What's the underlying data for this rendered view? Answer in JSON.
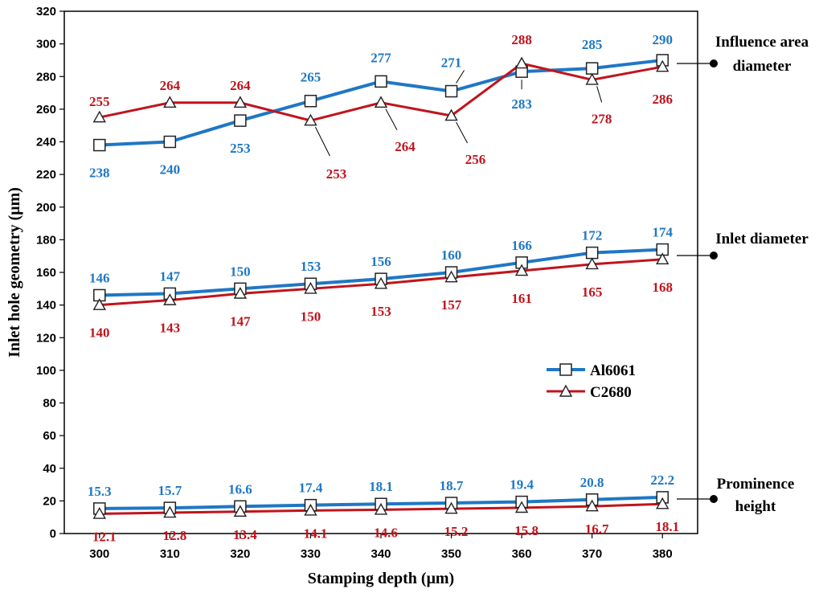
{
  "chart_data": {
    "type": "line",
    "xlabel": "Stamping depth (μm)",
    "ylabel": "Inlet hole geometry (μm)",
    "x": [
      300,
      310,
      320,
      330,
      340,
      350,
      360,
      370,
      380
    ],
    "x_tick_labels": [
      "300",
      "310",
      "320",
      "330",
      "340",
      "350",
      "360",
      "370",
      "380"
    ],
    "xlim": [
      295,
      385
    ],
    "ylim": [
      0,
      320
    ],
    "y_ticks": [
      0,
      20,
      40,
      60,
      80,
      100,
      120,
      140,
      160,
      180,
      200,
      220,
      240,
      260,
      280,
      300,
      320
    ],
    "y_tick_labels": [
      "0",
      "20",
      "40",
      "60",
      "80",
      "100",
      "120",
      "140",
      "160",
      "180",
      "200",
      "220",
      "240",
      "260",
      "280",
      "300",
      "320"
    ],
    "grid": false,
    "legend": {
      "position": "center-right",
      "entries": [
        {
          "label": "Al6061",
          "color": "#1f77c4",
          "marker": "square"
        },
        {
          "label": "C2680",
          "color": "#c0141c",
          "marker": "triangle"
        }
      ]
    },
    "groups": [
      {
        "name": "Influence area diameter",
        "label_lines": [
          "Influence area",
          "diameter"
        ],
        "series": [
          {
            "name": "Al6061",
            "color": "#1f77c4",
            "marker": "square",
            "values": [
              238,
              240,
              253,
              265,
              277,
              271,
              283,
              285,
              290
            ],
            "labels": [
              "238",
              "240",
              "253",
              "265",
              "277",
              "271",
              "283",
              "285",
              "290"
            ]
          },
          {
            "name": "C2680",
            "color": "#c0141c",
            "marker": "triangle",
            "values": [
              255,
              264,
              264,
              253,
              264,
              256,
              288,
              278,
              286
            ],
            "labels": [
              "255",
              "264",
              "264",
              "253",
              "264",
              "256",
              "288",
              "278",
              "286"
            ]
          }
        ]
      },
      {
        "name": "Inlet diameter",
        "label_lines": [
          "Inlet diameter"
        ],
        "series": [
          {
            "name": "Al6061",
            "color": "#1f77c4",
            "marker": "square",
            "values": [
              146,
              147,
              150,
              153,
              156,
              160,
              166,
              172,
              174
            ],
            "labels": [
              "146",
              "147",
              "150",
              "153",
              "156",
              "160",
              "166",
              "172",
              "174"
            ]
          },
          {
            "name": "C2680",
            "color": "#c0141c",
            "marker": "triangle",
            "values": [
              140,
              143,
              147,
              150,
              153,
              157,
              161,
              165,
              168
            ],
            "labels": [
              "140",
              "143",
              "147",
              "150",
              "153",
              "157",
              "161",
              "165",
              "168"
            ]
          }
        ]
      },
      {
        "name": "Prominence height",
        "label_lines": [
          "Prominence",
          "height"
        ],
        "series": [
          {
            "name": "Al6061",
            "color": "#1f77c4",
            "marker": "square",
            "values": [
              15.3,
              15.7,
              16.6,
              17.4,
              18.1,
              18.7,
              19.4,
              20.8,
              22.2
            ],
            "labels": [
              "15.3",
              "15.7",
              "16.6",
              "17.4",
              "18.1",
              "18.7",
              "19.4",
              "20.8",
              "22.2"
            ]
          },
          {
            "name": "C2680",
            "color": "#c0141c",
            "marker": "triangle",
            "values": [
              12.1,
              12.8,
              13.4,
              14.1,
              14.6,
              15.2,
              15.8,
              16.7,
              18.1
            ],
            "labels": [
              "12.1",
              "12.8",
              "13.4",
              "14.1",
              "14.6",
              "15.2",
              "15.8",
              "16.7",
              "18.1"
            ]
          }
        ]
      }
    ]
  }
}
